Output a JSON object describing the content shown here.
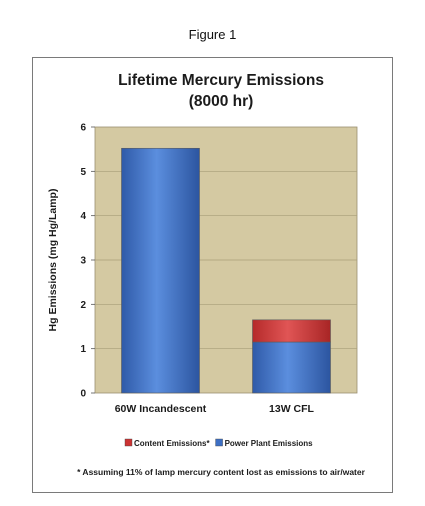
{
  "figure_caption": "Figure 1",
  "chart_data": {
    "type": "bar",
    "stacked": true,
    "title_lines": [
      "Lifetime Mercury Emissions",
      "(8000 hr)"
    ],
    "ylabel": "Hg Emissions (mg Hg/Lamp)",
    "xlabel": "",
    "categories": [
      "60W Incandescent",
      "13W CFL"
    ],
    "ylim": [
      0,
      6
    ],
    "yticks": [
      0,
      1,
      2,
      3,
      4,
      5,
      6
    ],
    "grid": true,
    "series": [
      {
        "name": "Power Plant Emissions",
        "values": [
          5.52,
          1.15
        ],
        "color": "#3d6fc4"
      },
      {
        "name": "Content Emissions*",
        "values": [
          0,
          0.5
        ],
        "color": "#cc3333"
      }
    ],
    "legend_order": [
      "Content Emissions*",
      "Power Plant Emissions"
    ],
    "legend_position": "bottom",
    "plot_background": "#d4c9a2",
    "footnote": "* Assuming 11% of lamp mercury content lost as emissions to air/water"
  }
}
